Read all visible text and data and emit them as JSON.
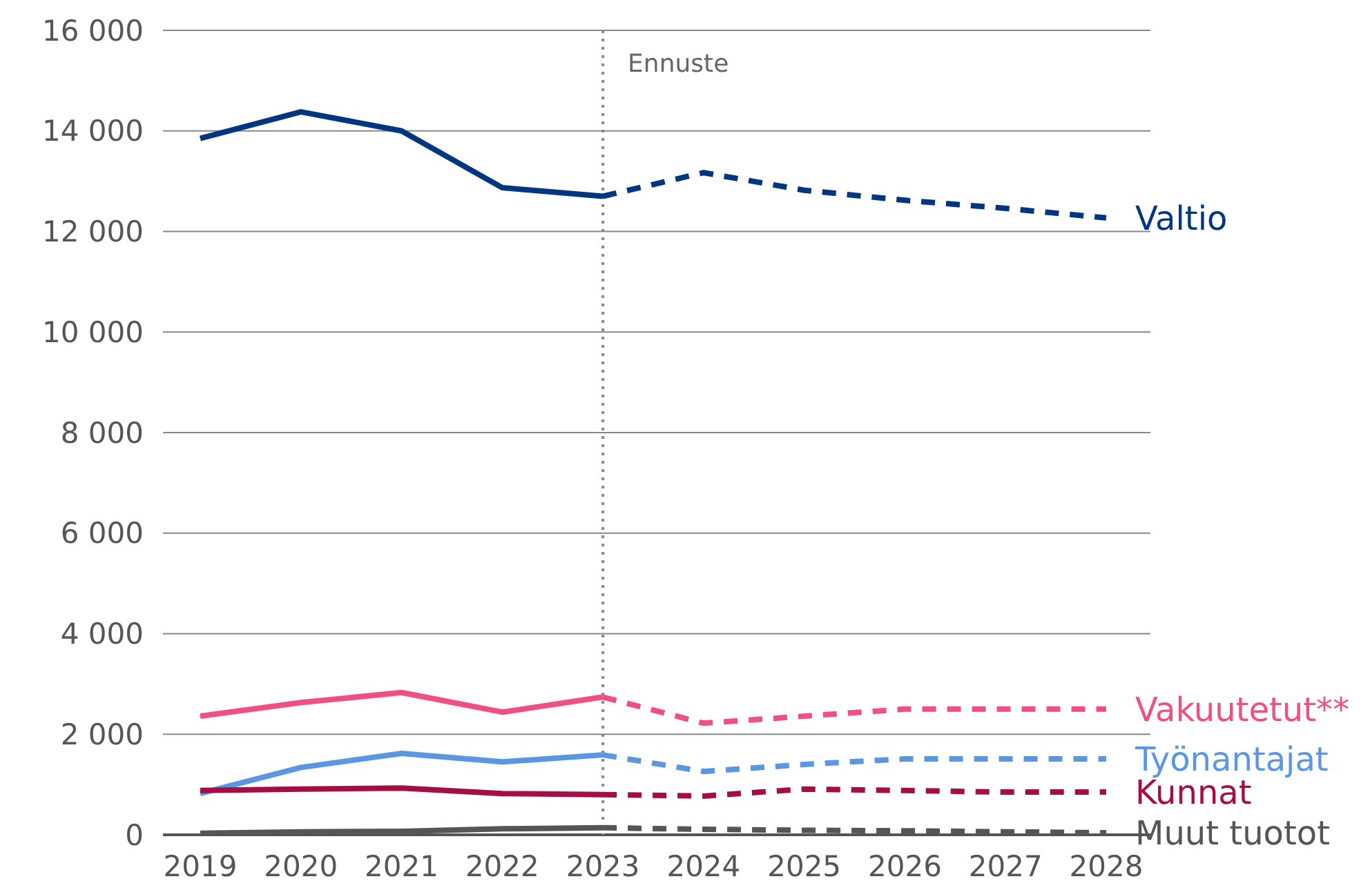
{
  "chart_data": {
    "type": "line",
    "categories": [
      "2019",
      "2020",
      "2021",
      "2022",
      "2023",
      "2024",
      "2025",
      "2026",
      "2027",
      "2028"
    ],
    "ylim": [
      0,
      16000
    ],
    "yticks": [
      0,
      {
        "value": 2000,
        "label": "2 000"
      },
      {
        "value": 4000,
        "label": "4 000"
      },
      {
        "value": 6000,
        "label": "6 000"
      },
      {
        "value": 8000,
        "label": "8 000"
      },
      {
        "value": 10000,
        "label": "10 000"
      },
      {
        "value": 12000,
        "label": "12 000"
      },
      {
        "value": 14000,
        "label": "14 000"
      },
      {
        "value": 16000,
        "label": "16 000"
      }
    ],
    "grid": "y",
    "marker": "none",
    "ref_lines": [
      {
        "axis": "x",
        "value": "2023",
        "label": "Ennuste",
        "color": "#888888",
        "line_style": "dotted"
      }
    ],
    "series": [
      {
        "name": "Valtio",
        "color": "#003580",
        "line_style": "solid",
        "values": [
          13850,
          14380,
          14000,
          12870,
          12700,
          null,
          null,
          null,
          null,
          null
        ]
      },
      {
        "color": "#003580",
        "line_style": "dashed",
        "values": [
          null,
          null,
          null,
          null,
          12700,
          13170,
          12820,
          12620,
          12460,
          12270
        ]
      },
      {
        "name": "Vakuutetut**",
        "color": "#f0507f",
        "line_style": "solid",
        "values": [
          2360,
          2630,
          2830,
          2440,
          2740,
          null,
          null,
          null,
          null,
          null
        ]
      },
      {
        "color": "#f0507f",
        "line_style": "dashed",
        "values": [
          null,
          null,
          null,
          null,
          2740,
          2220,
          2360,
          2500,
          2500,
          2500
        ]
      },
      {
        "name": "Työnantajat",
        "color": "#5b96e0",
        "line_style": "solid",
        "values": [
          820,
          1340,
          1620,
          1450,
          1590,
          null,
          null,
          null,
          null,
          null
        ]
      },
      {
        "color": "#5b96e0",
        "line_style": "dashed",
        "values": [
          null,
          null,
          null,
          null,
          1590,
          1260,
          1400,
          1510,
          1510,
          1510
        ]
      },
      {
        "name": "Kunnat",
        "color": "#a50d45",
        "line_style": "solid",
        "values": [
          880,
          910,
          930,
          820,
          800,
          null,
          null,
          null,
          null,
          null
        ]
      },
      {
        "color": "#a50d45",
        "line_style": "dashed",
        "values": [
          null,
          null,
          null,
          null,
          800,
          770,
          910,
          880,
          850,
          850
        ]
      },
      {
        "name": "Muut tuotot",
        "color": "#555555",
        "line_style": "solid",
        "values": [
          30,
          60,
          70,
          120,
          140,
          null,
          null,
          null,
          null,
          null
        ]
      },
      {
        "color": "#555555",
        "line_style": "dashed",
        "values": [
          null,
          null,
          null,
          null,
          140,
          110,
          90,
          80,
          60,
          40
        ]
      }
    ]
  }
}
